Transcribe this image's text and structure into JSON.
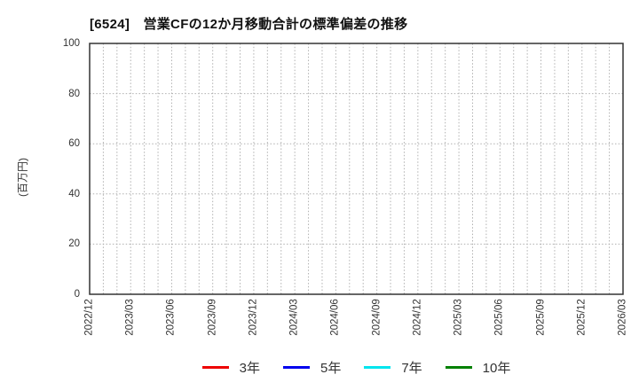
{
  "chart_data": {
    "type": "line",
    "title": "[6524]　営業CFの12か月移動合計の標準偏差の推移",
    "ylabel": "(百万円)",
    "xlabel": "",
    "ylim": [
      0,
      100
    ],
    "yticks": [
      0,
      20,
      40,
      60,
      80,
      100
    ],
    "categories": [
      "2022/12",
      "2023/03",
      "2023/06",
      "2023/09",
      "2023/12",
      "2024/03",
      "2024/06",
      "2024/09",
      "2024/12",
      "2025/03",
      "2025/06",
      "2025/09",
      "2025/12",
      "2026/03"
    ],
    "months_per_category_interval": 3,
    "grid": true,
    "legend_position": "bottom-center",
    "series": [
      {
        "name": "3年",
        "color": "#ee0000",
        "values": []
      },
      {
        "name": "5年",
        "color": "#0000ee",
        "values": []
      },
      {
        "name": "7年",
        "color": "#00e5ee",
        "values": []
      },
      {
        "name": "10年",
        "color": "#008000",
        "values": []
      }
    ]
  },
  "colors": {
    "background": "#ffffff",
    "grid": "#b0b0b0",
    "axis_border": "#333333",
    "title_text": "#111111",
    "tick_text": "#333333"
  }
}
